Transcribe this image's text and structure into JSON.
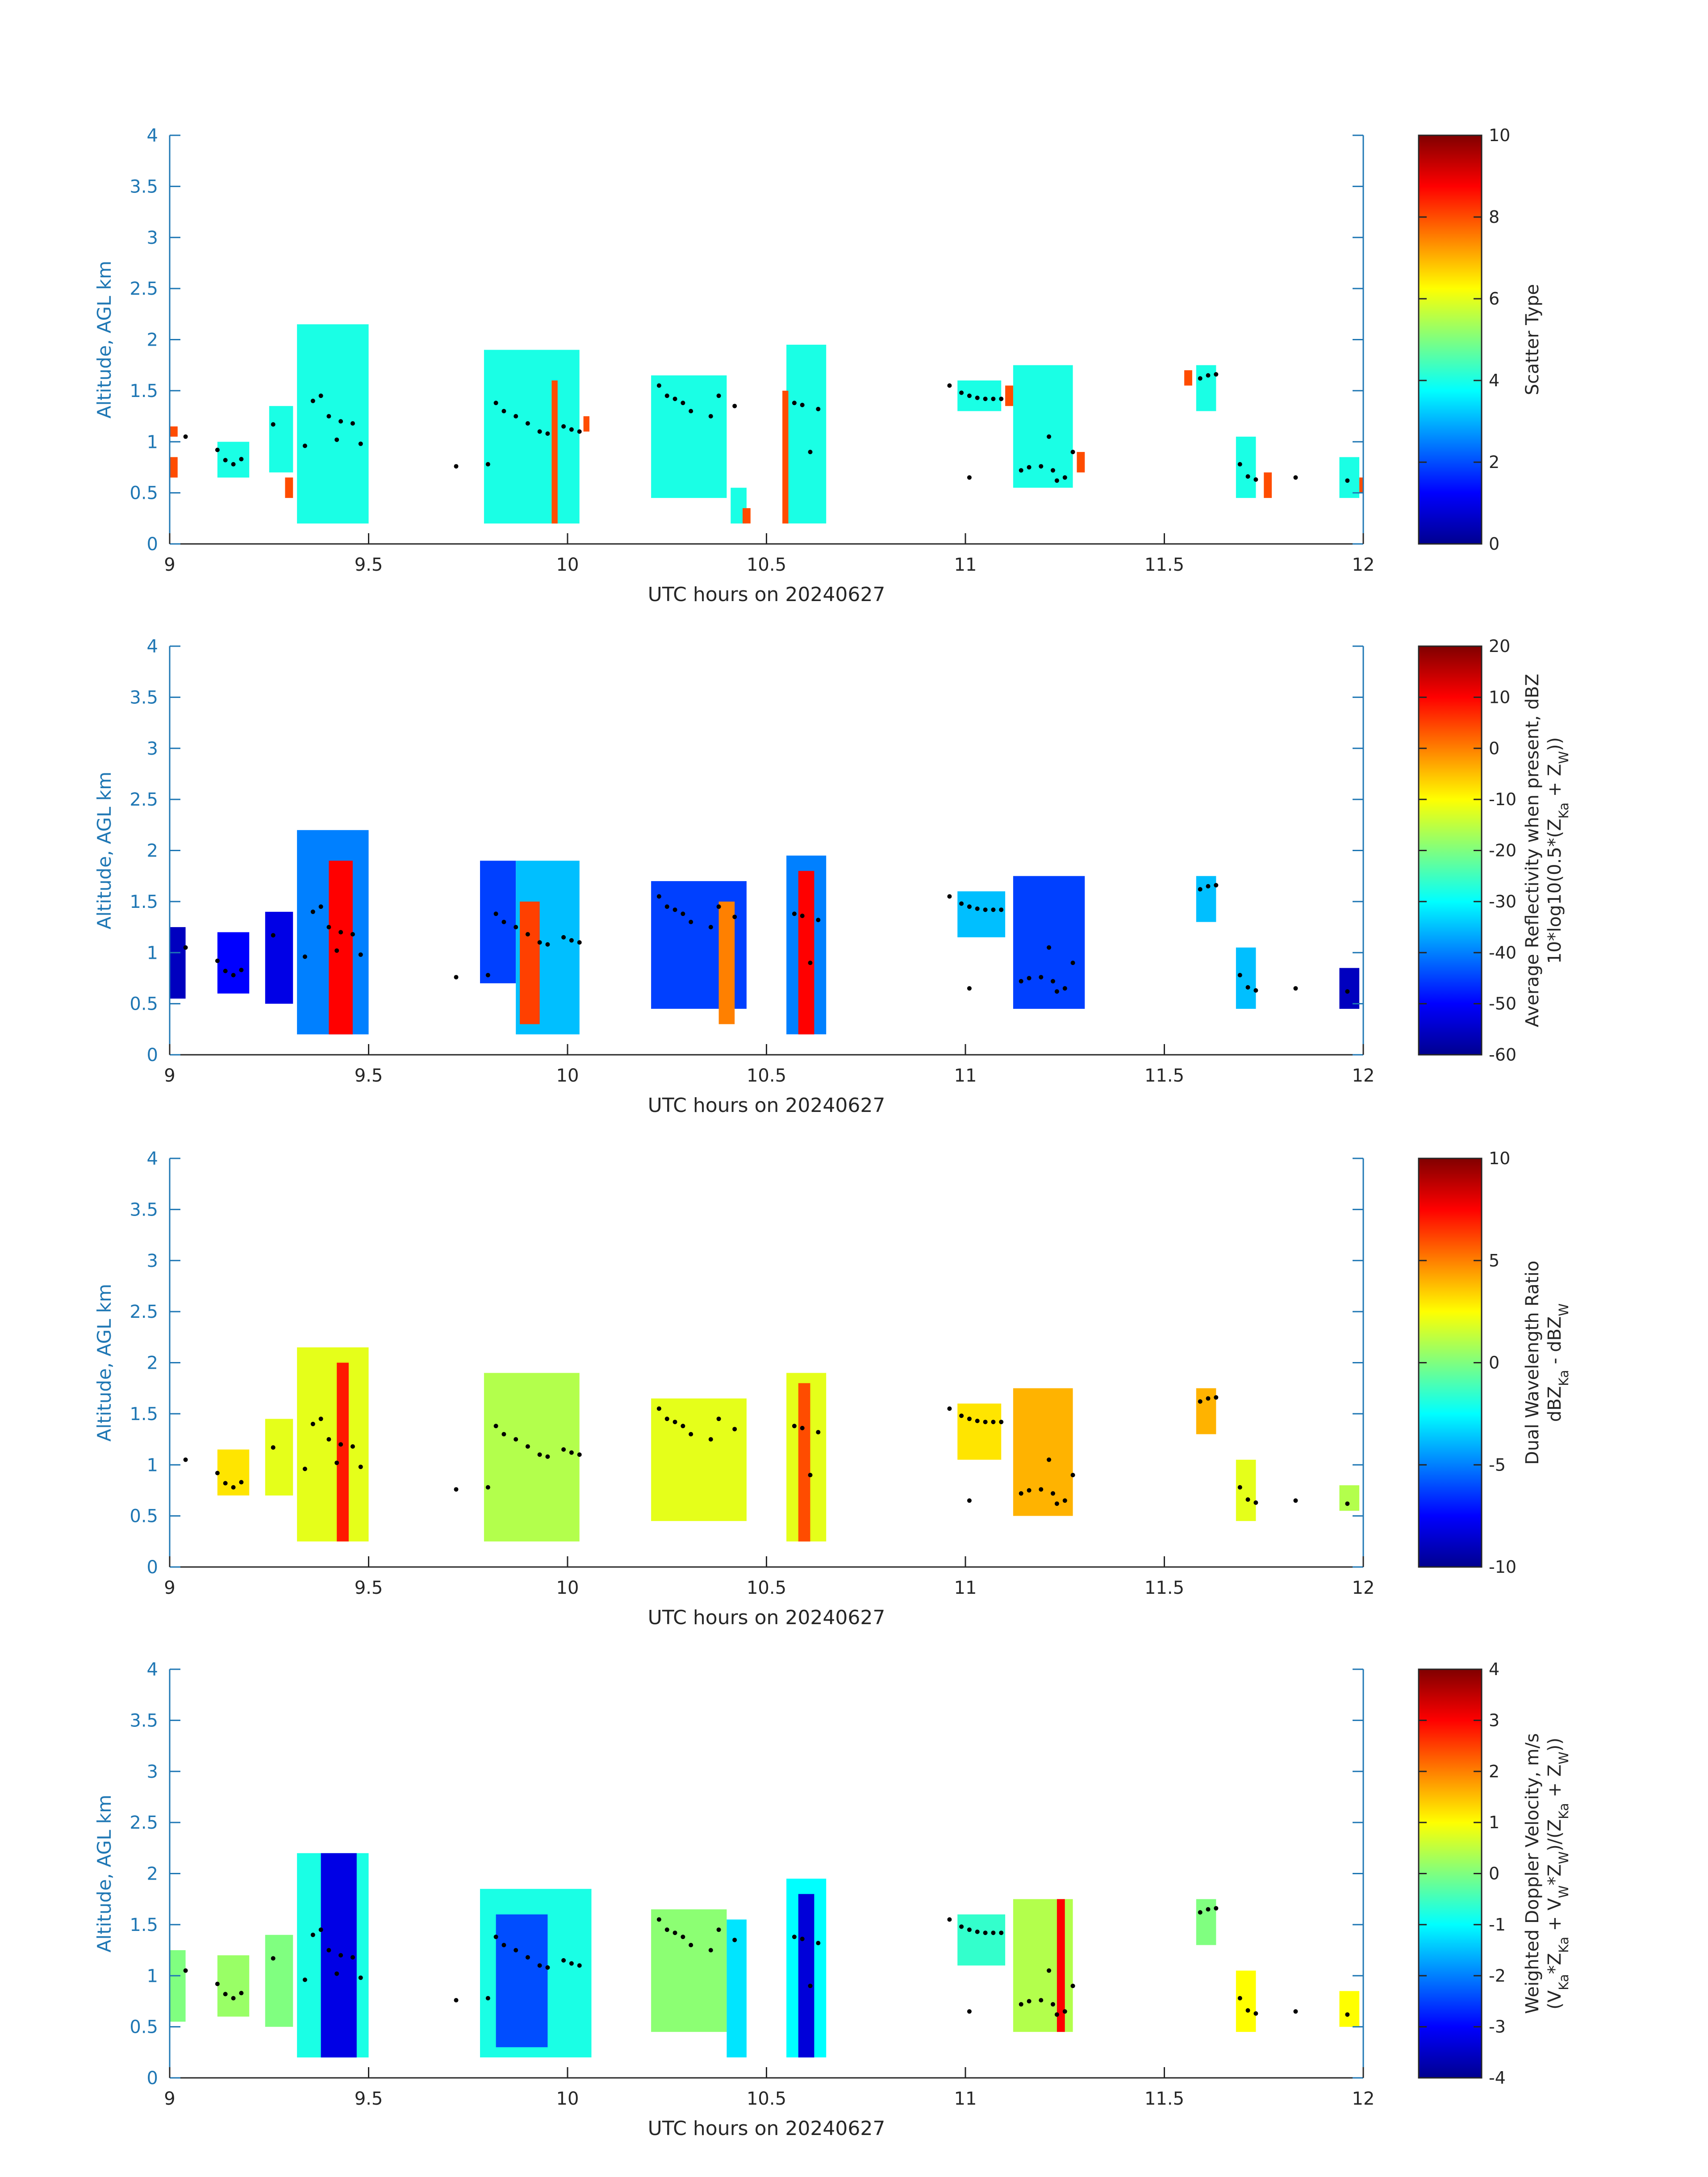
{
  "figure": {
    "x_axis_label": "UTC hours on 20240627",
    "y_axis_label": "Altitude, AGL km"
  },
  "chart_data": [
    {
      "type": "heatmap",
      "name": "scatter-type",
      "colorbar_label_lines": [
        "Scatter Type"
      ],
      "colorbar_range": [
        0,
        10
      ],
      "colorbar_ticks": [
        "0",
        "2",
        "4",
        "6",
        "8",
        "10"
      ],
      "xlim": [
        9,
        12
      ],
      "ylim": [
        0,
        4
      ],
      "x_ticks": [
        "9",
        "9.5",
        "10",
        "10.5",
        "11",
        "11.5",
        "12"
      ],
      "y_ticks": [
        "0",
        "0.5",
        "1",
        "1.5",
        "2",
        "2.5",
        "3",
        "3.5",
        "4"
      ],
      "cells": [
        {
          "x0": 9.12,
          "x1": 9.2,
          "y0": 0.65,
          "y1": 1.0,
          "v": 4
        },
        {
          "x0": 9.25,
          "x1": 9.31,
          "y0": 0.7,
          "y1": 1.35,
          "v": 4
        },
        {
          "x0": 9.32,
          "x1": 9.5,
          "y0": 0.2,
          "y1": 2.15,
          "v": 4
        },
        {
          "x0": 9.79,
          "x1": 10.03,
          "y0": 0.2,
          "y1": 1.9,
          "v": 4
        },
        {
          "x0": 10.21,
          "x1": 10.4,
          "y0": 0.45,
          "y1": 1.65,
          "v": 4
        },
        {
          "x0": 10.41,
          "x1": 10.45,
          "y0": 0.2,
          "y1": 0.55,
          "v": 4
        },
        {
          "x0": 10.55,
          "x1": 10.65,
          "y0": 0.2,
          "y1": 1.95,
          "v": 4
        },
        {
          "x0": 10.98,
          "x1": 11.09,
          "y0": 1.3,
          "y1": 1.6,
          "v": 4
        },
        {
          "x0": 11.12,
          "x1": 11.27,
          "y0": 0.55,
          "y1": 1.75,
          "v": 4
        },
        {
          "x0": 11.58,
          "x1": 11.63,
          "y0": 1.3,
          "y1": 1.75,
          "v": 4
        },
        {
          "x0": 11.68,
          "x1": 11.73,
          "y0": 0.45,
          "y1": 1.05,
          "v": 4
        },
        {
          "x0": 11.94,
          "x1": 11.99,
          "y0": 0.45,
          "y1": 0.85,
          "v": 4
        },
        {
          "x0": 9.0,
          "x1": 9.02,
          "y0": 1.05,
          "y1": 1.15,
          "v": 8
        },
        {
          "x0": 9.0,
          "x1": 9.02,
          "y0": 0.65,
          "y1": 0.85,
          "v": 8
        },
        {
          "x0": 9.29,
          "x1": 9.31,
          "y0": 0.45,
          "y1": 0.65,
          "v": 8
        },
        {
          "x0": 9.96,
          "x1": 9.975,
          "y0": 0.2,
          "y1": 1.6,
          "v": 8
        },
        {
          "x0": 10.04,
          "x1": 10.055,
          "y0": 1.1,
          "y1": 1.25,
          "v": 8
        },
        {
          "x0": 10.54,
          "x1": 10.555,
          "y0": 0.2,
          "y1": 1.5,
          "v": 8
        },
        {
          "x0": 10.44,
          "x1": 10.46,
          "y0": 0.2,
          "y1": 0.35,
          "v": 8
        },
        {
          "x0": 11.1,
          "x1": 11.12,
          "y0": 1.35,
          "y1": 1.55,
          "v": 8
        },
        {
          "x0": 11.28,
          "x1": 11.3,
          "y0": 0.7,
          "y1": 0.9,
          "v": 8
        },
        {
          "x0": 11.55,
          "x1": 11.57,
          "y0": 1.55,
          "y1": 1.7,
          "v": 8
        },
        {
          "x0": 11.75,
          "x1": 11.77,
          "y0": 0.45,
          "y1": 0.7,
          "v": 8
        },
        {
          "x0": 11.99,
          "x1": 12.0,
          "y0": 0.5,
          "y1": 0.65,
          "v": 8
        }
      ]
    },
    {
      "type": "heatmap",
      "name": "average-reflectivity",
      "colorbar_label_lines": [
        "Average Reflectivity when present, dBZ",
        "10*log10(0.5*(Z_Ka + Z_W))"
      ],
      "colorbar_range": [
        -60,
        20
      ],
      "colorbar_ticks": [
        "-60",
        "-50",
        "-40",
        "-30",
        "-20",
        "-10",
        "0",
        "10",
        "20"
      ],
      "xlim": [
        9,
        12
      ],
      "ylim": [
        0,
        4
      ],
      "x_ticks": [
        "9",
        "9.5",
        "10",
        "10.5",
        "11",
        "11.5",
        "12"
      ],
      "y_ticks": [
        "0",
        "0.5",
        "1",
        "1.5",
        "2",
        "2.5",
        "3",
        "3.5",
        "4"
      ],
      "cells": [
        {
          "x0": 9.0,
          "x1": 9.04,
          "y0": 0.55,
          "y1": 1.25,
          "v": -55
        },
        {
          "x0": 9.12,
          "x1": 9.2,
          "y0": 0.6,
          "y1": 1.2,
          "v": -50
        },
        {
          "x0": 9.24,
          "x1": 9.31,
          "y0": 0.5,
          "y1": 1.4,
          "v": -52
        },
        {
          "x0": 9.32,
          "x1": 9.5,
          "y0": 0.2,
          "y1": 2.2,
          "v": -40
        },
        {
          "x0": 9.4,
          "x1": 9.46,
          "y0": 0.2,
          "y1": 1.9,
          "v": 10
        },
        {
          "x0": 9.78,
          "x1": 9.87,
          "y0": 0.7,
          "y1": 1.9,
          "v": -45
        },
        {
          "x0": 9.87,
          "x1": 10.03,
          "y0": 0.2,
          "y1": 1.9,
          "v": -35
        },
        {
          "x0": 9.88,
          "x1": 9.93,
          "y0": 0.3,
          "y1": 1.5,
          "v": 5
        },
        {
          "x0": 10.21,
          "x1": 10.45,
          "y0": 0.45,
          "y1": 1.7,
          "v": -45
        },
        {
          "x0": 10.38,
          "x1": 10.42,
          "y0": 0.3,
          "y1": 1.5,
          "v": 0
        },
        {
          "x0": 10.55,
          "x1": 10.65,
          "y0": 0.2,
          "y1": 1.95,
          "v": -40
        },
        {
          "x0": 10.58,
          "x1": 10.62,
          "y0": 0.2,
          "y1": 1.8,
          "v": 10
        },
        {
          "x0": 10.98,
          "x1": 11.1,
          "y0": 1.15,
          "y1": 1.6,
          "v": -35
        },
        {
          "x0": 11.12,
          "x1": 11.3,
          "y0": 0.45,
          "y1": 1.75,
          "v": -45
        },
        {
          "x0": 11.58,
          "x1": 11.63,
          "y0": 1.3,
          "y1": 1.75,
          "v": -35
        },
        {
          "x0": 11.68,
          "x1": 11.73,
          "y0": 0.45,
          "y1": 1.05,
          "v": -35
        },
        {
          "x0": 11.94,
          "x1": 11.99,
          "y0": 0.45,
          "y1": 0.85,
          "v": -55
        }
      ]
    },
    {
      "type": "heatmap",
      "name": "dual-wavelength-ratio",
      "colorbar_label_lines": [
        "Dual Wavelength Ratio",
        "dBZ_Ka - dBZ_W"
      ],
      "colorbar_range": [
        -10,
        10
      ],
      "colorbar_ticks": [
        "-10",
        "-5",
        "0",
        "5",
        "10"
      ],
      "xlim": [
        9,
        12
      ],
      "ylim": [
        0,
        4
      ],
      "x_ticks": [
        "9",
        "9.5",
        "10",
        "10.5",
        "11",
        "11.5",
        "12"
      ],
      "y_ticks": [
        "0",
        "0.5",
        "1",
        "1.5",
        "2",
        "2.5",
        "3",
        "3.5",
        "4"
      ],
      "cells": [
        {
          "x0": 9.12,
          "x1": 9.2,
          "y0": 0.7,
          "y1": 1.15,
          "v": 3
        },
        {
          "x0": 9.24,
          "x1": 9.31,
          "y0": 0.7,
          "y1": 1.45,
          "v": 2
        },
        {
          "x0": 9.32,
          "x1": 9.5,
          "y0": 0.25,
          "y1": 2.15,
          "v": 2
        },
        {
          "x0": 9.42,
          "x1": 9.45,
          "y0": 0.25,
          "y1": 2.0,
          "v": 7
        },
        {
          "x0": 9.79,
          "x1": 10.03,
          "y0": 0.25,
          "y1": 1.9,
          "v": 1
        },
        {
          "x0": 10.21,
          "x1": 10.45,
          "y0": 0.45,
          "y1": 1.65,
          "v": 2
        },
        {
          "x0": 10.55,
          "x1": 10.65,
          "y0": 0.25,
          "y1": 1.9,
          "v": 2
        },
        {
          "x0": 10.58,
          "x1": 10.61,
          "y0": 0.25,
          "y1": 1.8,
          "v": 6
        },
        {
          "x0": 10.98,
          "x1": 11.09,
          "y0": 1.05,
          "y1": 1.6,
          "v": 3
        },
        {
          "x0": 11.12,
          "x1": 11.27,
          "y0": 0.5,
          "y1": 1.75,
          "v": 4
        },
        {
          "x0": 11.58,
          "x1": 11.63,
          "y0": 1.3,
          "y1": 1.75,
          "v": 4
        },
        {
          "x0": 11.68,
          "x1": 11.73,
          "y0": 0.45,
          "y1": 1.05,
          "v": 2
        },
        {
          "x0": 11.94,
          "x1": 11.99,
          "y0": 0.55,
          "y1": 0.8,
          "v": 1
        }
      ]
    },
    {
      "type": "heatmap",
      "name": "weighted-doppler-velocity",
      "colorbar_label_lines": [
        "Weighted Doppler Velocity, m/s",
        "(V_Ka*Z_Ka + V_W*Z_W)/(Z_Ka + Z_W))"
      ],
      "colorbar_range": [
        -4,
        4
      ],
      "colorbar_ticks": [
        "-4",
        "-3",
        "-2",
        "-1",
        "0",
        "1",
        "2",
        "3",
        "4"
      ],
      "xlim": [
        9,
        12
      ],
      "ylim": [
        0,
        4
      ],
      "x_ticks": [
        "9",
        "9.5",
        "10",
        "10.5",
        "11",
        "11.5",
        "12"
      ],
      "y_ticks": [
        "0",
        "0.5",
        "1",
        "1.5",
        "2",
        "2.5",
        "3",
        "3.5",
        "4"
      ],
      "cells": [
        {
          "x0": 9.0,
          "x1": 9.04,
          "y0": 0.55,
          "y1": 1.25,
          "v": 0
        },
        {
          "x0": 9.12,
          "x1": 9.2,
          "y0": 0.6,
          "y1": 1.2,
          "v": 0.2
        },
        {
          "x0": 9.24,
          "x1": 9.31,
          "y0": 0.5,
          "y1": 1.4,
          "v": 0
        },
        {
          "x0": 9.32,
          "x1": 9.5,
          "y0": 0.2,
          "y1": 2.2,
          "v": -0.8
        },
        {
          "x0": 9.38,
          "x1": 9.47,
          "y0": 0.2,
          "y1": 2.2,
          "v": -3.2
        },
        {
          "x0": 9.78,
          "x1": 10.06,
          "y0": 0.2,
          "y1": 1.85,
          "v": -0.8
        },
        {
          "x0": 9.82,
          "x1": 9.95,
          "y0": 0.3,
          "y1": 1.6,
          "v": -2.4
        },
        {
          "x0": 10.21,
          "x1": 10.4,
          "y0": 0.45,
          "y1": 1.65,
          "v": 0.1
        },
        {
          "x0": 10.4,
          "x1": 10.45,
          "y0": 0.2,
          "y1": 1.55,
          "v": -1.2
        },
        {
          "x0": 10.55,
          "x1": 10.65,
          "y0": 0.2,
          "y1": 1.95,
          "v": -1.0
        },
        {
          "x0": 10.58,
          "x1": 10.62,
          "y0": 0.2,
          "y1": 1.8,
          "v": -3.3
        },
        {
          "x0": 10.98,
          "x1": 11.1,
          "y0": 1.1,
          "y1": 1.6,
          "v": -0.6
        },
        {
          "x0": 11.12,
          "x1": 11.27,
          "y0": 0.45,
          "y1": 1.75,
          "v": 0.4
        },
        {
          "x0": 11.23,
          "x1": 11.25,
          "y0": 0.45,
          "y1": 1.75,
          "v": 3
        },
        {
          "x0": 11.58,
          "x1": 11.63,
          "y0": 1.3,
          "y1": 1.75,
          "v": 0
        },
        {
          "x0": 11.68,
          "x1": 11.73,
          "y0": 0.45,
          "y1": 1.05,
          "v": 1
        },
        {
          "x0": 11.94,
          "x1": 11.99,
          "y0": 0.5,
          "y1": 0.85,
          "v": 1
        }
      ]
    }
  ],
  "markers": [
    {
      "x": 9.04,
      "y": 1.05
    },
    {
      "x": 9.12,
      "y": 0.92
    },
    {
      "x": 9.14,
      "y": 0.82
    },
    {
      "x": 9.16,
      "y": 0.78
    },
    {
      "x": 9.18,
      "y": 0.83
    },
    {
      "x": 9.26,
      "y": 1.17
    },
    {
      "x": 9.36,
      "y": 1.4
    },
    {
      "x": 9.38,
      "y": 1.45
    },
    {
      "x": 9.4,
      "y": 1.25
    },
    {
      "x": 9.43,
      "y": 1.2
    },
    {
      "x": 9.46,
      "y": 1.18
    },
    {
      "x": 9.48,
      "y": 0.98
    },
    {
      "x": 9.34,
      "y": 0.96
    },
    {
      "x": 9.42,
      "y": 1.02
    },
    {
      "x": 9.72,
      "y": 0.76
    },
    {
      "x": 9.82,
      "y": 1.38
    },
    {
      "x": 9.84,
      "y": 1.3
    },
    {
      "x": 9.87,
      "y": 1.25
    },
    {
      "x": 9.9,
      "y": 1.18
    },
    {
      "x": 9.93,
      "y": 1.1
    },
    {
      "x": 9.95,
      "y": 1.08
    },
    {
      "x": 9.99,
      "y": 1.15
    },
    {
      "x": 10.01,
      "y": 1.12
    },
    {
      "x": 10.03,
      "y": 1.1
    },
    {
      "x": 9.8,
      "y": 0.78
    },
    {
      "x": 10.23,
      "y": 1.55
    },
    {
      "x": 10.25,
      "y": 1.45
    },
    {
      "x": 10.27,
      "y": 1.42
    },
    {
      "x": 10.29,
      "y": 1.38
    },
    {
      "x": 10.31,
      "y": 1.3
    },
    {
      "x": 10.36,
      "y": 1.25
    },
    {
      "x": 10.38,
      "y": 1.45
    },
    {
      "x": 10.42,
      "y": 1.35
    },
    {
      "x": 10.57,
      "y": 1.38
    },
    {
      "x": 10.59,
      "y": 1.36
    },
    {
      "x": 10.61,
      "y": 0.9
    },
    {
      "x": 10.63,
      "y": 1.32
    },
    {
      "x": 10.96,
      "y": 1.55
    },
    {
      "x": 10.99,
      "y": 1.48
    },
    {
      "x": 11.01,
      "y": 1.45
    },
    {
      "x": 11.03,
      "y": 1.43
    },
    {
      "x": 11.05,
      "y": 1.42
    },
    {
      "x": 11.07,
      "y": 1.42
    },
    {
      "x": 11.09,
      "y": 1.42
    },
    {
      "x": 11.01,
      "y": 0.65
    },
    {
      "x": 11.14,
      "y": 0.72
    },
    {
      "x": 11.16,
      "y": 0.75
    },
    {
      "x": 11.19,
      "y": 0.76
    },
    {
      "x": 11.21,
      "y": 1.05
    },
    {
      "x": 11.22,
      "y": 0.72
    },
    {
      "x": 11.23,
      "y": 0.62
    },
    {
      "x": 11.25,
      "y": 0.65
    },
    {
      "x": 11.27,
      "y": 0.9
    },
    {
      "x": 11.59,
      "y": 1.62
    },
    {
      "x": 11.61,
      "y": 1.65
    },
    {
      "x": 11.63,
      "y": 1.66
    },
    {
      "x": 11.69,
      "y": 0.78
    },
    {
      "x": 11.71,
      "y": 0.66
    },
    {
      "x": 11.73,
      "y": 0.63
    },
    {
      "x": 11.83,
      "y": 0.65
    },
    {
      "x": 11.96,
      "y": 0.62
    }
  ]
}
